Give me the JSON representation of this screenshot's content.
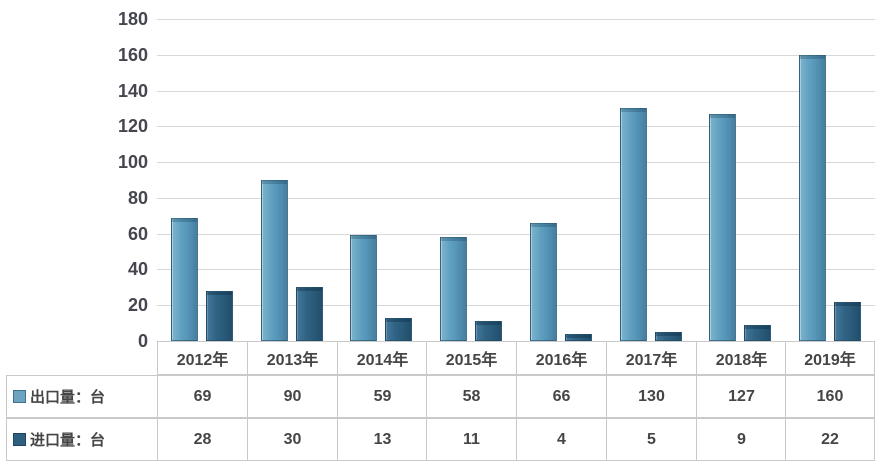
{
  "chart_data": {
    "type": "bar",
    "title": "",
    "xlabel": "",
    "ylabel": "",
    "categories": [
      "2012年",
      "2013年",
      "2014年",
      "2015年",
      "2016年",
      "2017年",
      "2018年",
      "2019年"
    ],
    "series": [
      {
        "name": "出口量：台",
        "values": [
          69,
          90,
          59,
          58,
          66,
          130,
          127,
          160
        ],
        "color": "#5b9cbd"
      },
      {
        "name": "进口量：台",
        "values": [
          28,
          30,
          13,
          11,
          4,
          5,
          9,
          22
        ],
        "color": "#2e5f7e"
      }
    ],
    "ylim": [
      0,
      180
    ],
    "ytick_step": 20,
    "y_ticks": [
      "180",
      "160",
      "140",
      "120",
      "100",
      "80",
      "60",
      "40",
      "20",
      "0"
    ],
    "grid": true,
    "legend_position": "data-table-left",
    "colors": {
      "grid": "#d8d8d8",
      "axis_text": "#45464f",
      "table_border": "#c9c9c9",
      "table_text": "#454545"
    }
  }
}
